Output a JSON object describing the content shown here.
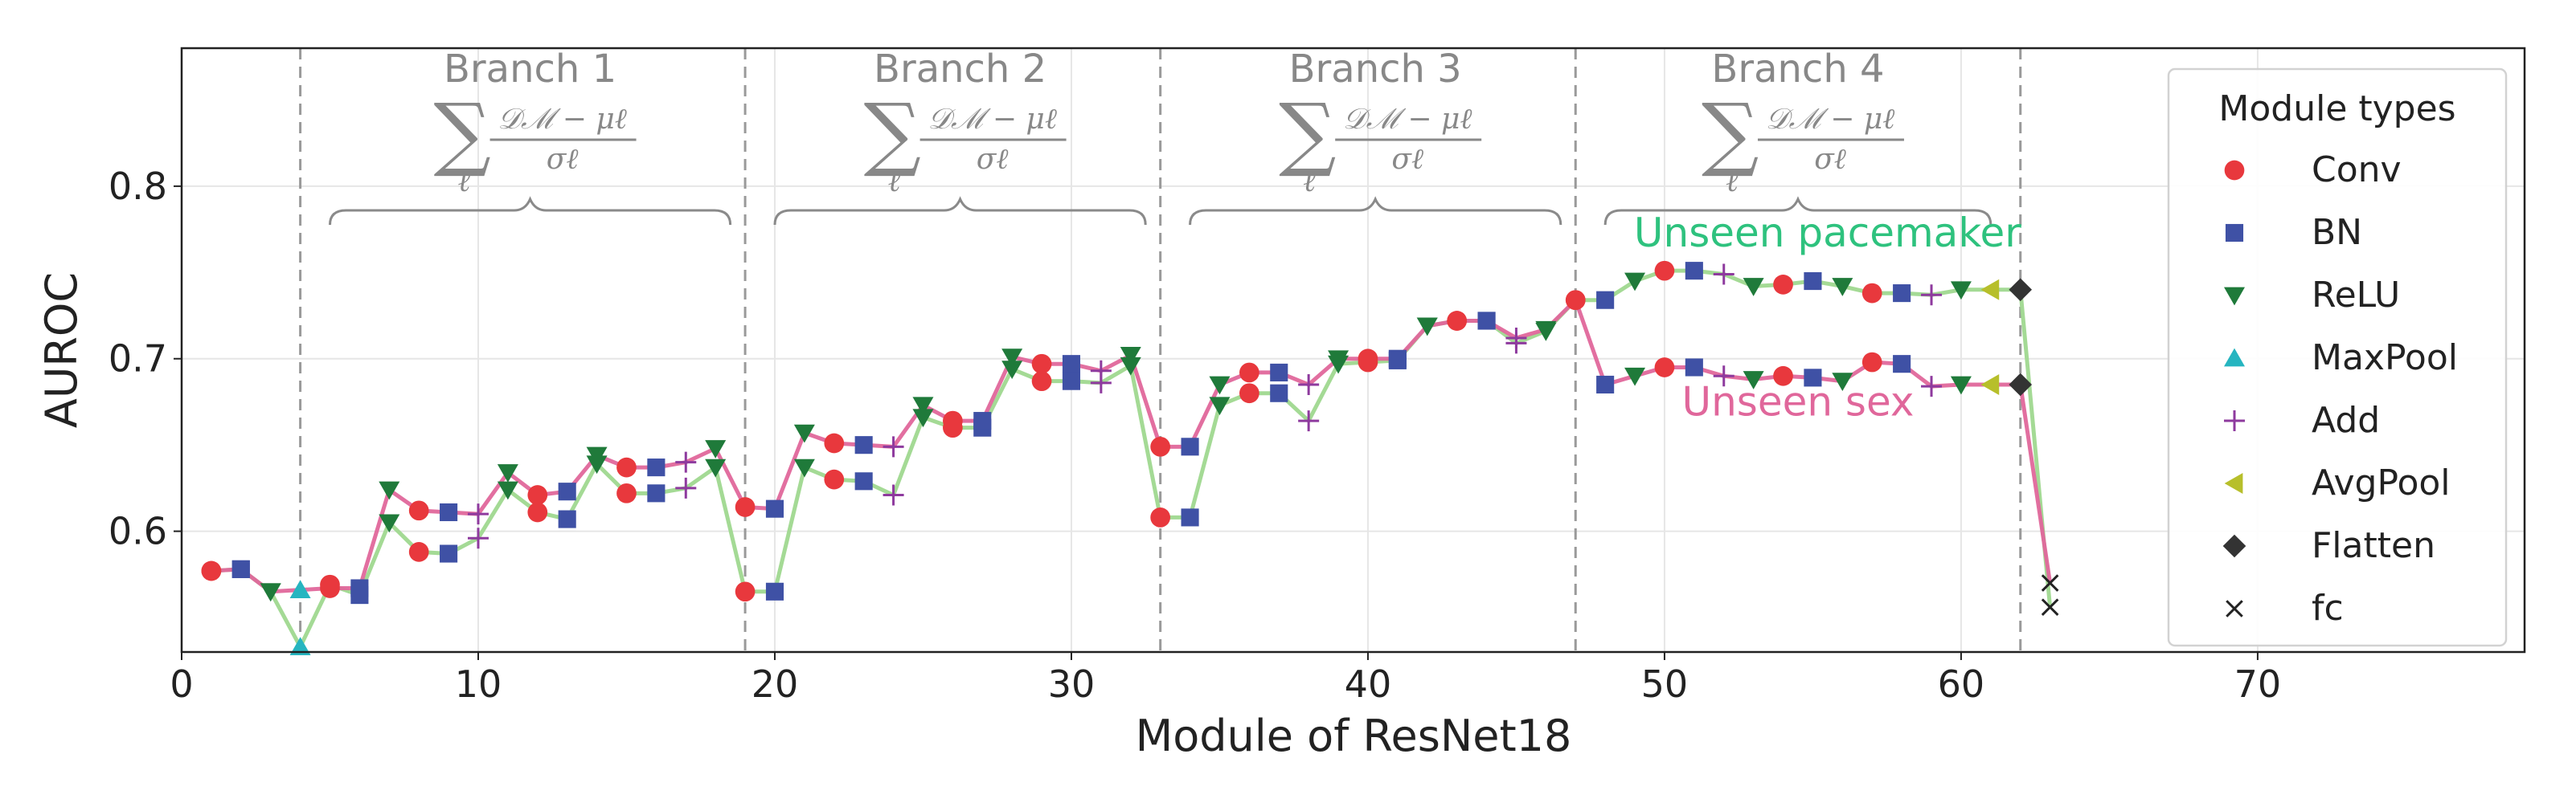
{
  "chart_data": {
    "type": "line",
    "xlabel": "Module of ResNet18",
    "ylabel": "AUROC",
    "xlim": [
      0,
      79
    ],
    "ylim": [
      0.53,
      0.88
    ],
    "xticks": [
      0,
      10,
      20,
      30,
      40,
      50,
      60,
      70
    ],
    "xtick_labels": [
      "0",
      "10",
      "20",
      "30",
      "40",
      "50",
      "60",
      "70"
    ],
    "yticks": [
      0.6,
      0.7,
      0.8
    ],
    "ytick_labels": [
      "0.6",
      "0.7",
      "0.8"
    ],
    "grid": true,
    "legend_position": "right",
    "legend_title": "Module types",
    "branch_separators": [
      4,
      19,
      33,
      47,
      62
    ],
    "branches": [
      {
        "label": "Branch 1",
        "x_start": 5,
        "x_end": 18.5
      },
      {
        "label": "Branch 2",
        "x_start": 20,
        "x_end": 32.5
      },
      {
        "label": "Branch 3",
        "x_start": 34,
        "x_end": 46.5
      },
      {
        "label": "Branch 4",
        "x_start": 48,
        "x_end": 61
      }
    ],
    "formula": {
      "sum_symbol": "∑",
      "index": "ℓ",
      "numerator": "𝒟ℳ − μℓ",
      "denominator": "σℓ"
    },
    "module_types": [
      {
        "name": "Conv",
        "marker": "circle",
        "color": "#e8383d"
      },
      {
        "name": "BN",
        "marker": "square",
        "color": "#3f51a5"
      },
      {
        "name": "ReLU",
        "marker": "triangle-down",
        "color": "#1f7a3a"
      },
      {
        "name": "MaxPool",
        "marker": "triangle-up",
        "color": "#26b5c0"
      },
      {
        "name": "Add",
        "marker": "plus",
        "color": "#8e3a9e"
      },
      {
        "name": "AvgPool",
        "marker": "triangle-left",
        "color": "#b7bf2b"
      },
      {
        "name": "Flatten",
        "marker": "diamond",
        "color": "#333333"
      },
      {
        "name": "fc",
        "marker": "x",
        "color": "#222222"
      }
    ],
    "module_sequence": [
      "Conv",
      "BN",
      "ReLU",
      "MaxPool",
      "Conv",
      "BN",
      "ReLU",
      "Conv",
      "BN",
      "Add",
      "ReLU",
      "Conv",
      "BN",
      "ReLU",
      "Conv",
      "BN",
      "Add",
      "ReLU",
      "Conv",
      "BN",
      "ReLU",
      "Conv",
      "BN",
      "Add",
      "ReLU",
      "Conv",
      "BN",
      "ReLU",
      "Conv",
      "BN",
      "Add",
      "ReLU",
      "Conv",
      "BN",
      "ReLU",
      "Conv",
      "BN",
      "Add",
      "ReLU",
      "Conv",
      "BN",
      "ReLU",
      "Conv",
      "BN",
      "Add",
      "ReLU",
      "Conv",
      "BN",
      "ReLU",
      "Conv",
      "BN",
      "Add",
      "ReLU",
      "Conv",
      "BN",
      "ReLU",
      "Conv",
      "BN",
      "Add",
      "ReLU",
      "AvgPool",
      "Flatten",
      "fc"
    ],
    "x": [
      1,
      2,
      3,
      4,
      5,
      6,
      7,
      8,
      9,
      10,
      11,
      12,
      13,
      14,
      15,
      16,
      17,
      18,
      19,
      20,
      21,
      22,
      23,
      24,
      25,
      26,
      27,
      28,
      29,
      30,
      31,
      32,
      33,
      34,
      35,
      36,
      37,
      38,
      39,
      40,
      41,
      42,
      43,
      44,
      45,
      46,
      47,
      48,
      49,
      50,
      51,
      52,
      53,
      54,
      55,
      56,
      57,
      58,
      59,
      60,
      61,
      62,
      63
    ],
    "series": [
      {
        "name": "Unseen sex",
        "color": "#e0679b",
        "values": [
          0.577,
          0.578,
          0.565,
          0.566,
          0.567,
          0.567,
          0.624,
          0.612,
          0.611,
          0.61,
          0.634,
          0.621,
          0.623,
          0.644,
          0.637,
          0.637,
          0.64,
          0.648,
          0.614,
          0.613,
          0.657,
          0.651,
          0.65,
          0.649,
          0.673,
          0.664,
          0.664,
          0.701,
          0.697,
          0.697,
          0.693,
          0.702,
          0.649,
          0.649,
          0.685,
          0.692,
          0.692,
          0.685,
          0.7,
          0.7,
          0.7,
          0.719,
          0.722,
          0.722,
          0.712,
          0.717,
          0.734,
          0.685,
          0.69,
          0.695,
          0.695,
          0.69,
          0.688,
          0.69,
          0.689,
          0.687,
          0.698,
          0.697,
          0.684,
          0.685,
          0.685,
          0.685,
          0.57
        ]
      },
      {
        "name": "Unseen pacemaker",
        "color": "#9fd88f",
        "values": [
          0.577,
          0.578,
          0.565,
          0.533,
          0.569,
          0.563,
          0.605,
          0.588,
          0.587,
          0.596,
          0.624,
          0.611,
          0.607,
          0.639,
          0.622,
          0.622,
          0.625,
          0.637,
          0.565,
          0.565,
          0.637,
          0.63,
          0.629,
          0.621,
          0.666,
          0.66,
          0.66,
          0.694,
          0.687,
          0.687,
          0.686,
          0.696,
          0.608,
          0.608,
          0.673,
          0.68,
          0.68,
          0.664,
          0.697,
          0.698,
          0.699,
          0.719,
          0.722,
          0.722,
          0.709,
          0.716,
          0.734,
          0.734,
          0.745,
          0.751,
          0.751,
          0.749,
          0.742,
          0.743,
          0.745,
          0.742,
          0.738,
          0.738,
          0.737,
          0.74,
          0.74,
          0.74,
          0.556
        ]
      }
    ],
    "annotations": [
      {
        "text": "Unseen pacemaker",
        "color": "#2ec27e",
        "x": 55.5,
        "y": 0.765
      },
      {
        "text": "Unseen sex",
        "color": "#e0679b",
        "x": 54.5,
        "y": 0.667
      }
    ]
  }
}
